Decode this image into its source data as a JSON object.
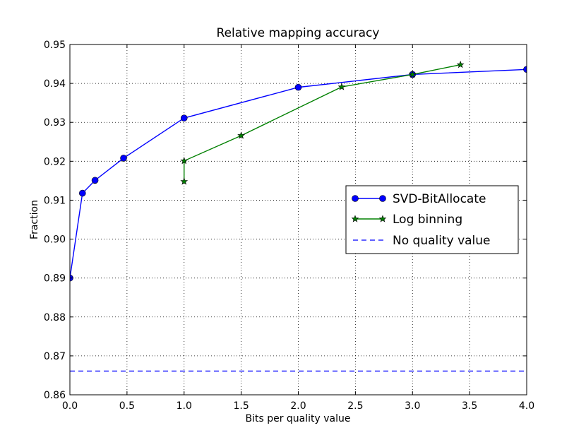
{
  "chart_data": {
    "type": "line",
    "title": "Relative mapping accuracy",
    "xlabel": "Bits per quality value",
    "ylabel": "Fraction",
    "xlim": [
      0.0,
      4.0
    ],
    "ylim": [
      0.86,
      0.95
    ],
    "xticks": [
      "0.0",
      "0.5",
      "1.0",
      "1.5",
      "2.0",
      "2.5",
      "3.0",
      "3.5",
      "4.0"
    ],
    "yticks": [
      "0.86",
      "0.87",
      "0.88",
      "0.89",
      "0.90",
      "0.91",
      "0.92",
      "0.93",
      "0.94",
      "0.95"
    ],
    "grid": true,
    "legend_position": "center-right",
    "series": [
      {
        "name": "SVD-BitAllocate",
        "color": "#0000ff",
        "marker": "circle",
        "x": [
          0.0,
          0.11,
          0.22,
          0.47,
          1.0,
          2.0,
          3.0,
          4.0
        ],
        "y": [
          0.89,
          0.9118,
          0.9151,
          0.9208,
          0.9311,
          0.939,
          0.9423,
          0.9436
        ]
      },
      {
        "name": "Log binning",
        "color": "#008000",
        "marker": "star",
        "x": [
          1.0,
          1.0,
          1.5,
          2.38,
          3.0,
          3.42
        ],
        "y": [
          0.9148,
          0.9201,
          0.9266,
          0.9391,
          0.9423,
          0.9448
        ]
      },
      {
        "name": "No quality value",
        "color": "#0000ff",
        "style": "dashed",
        "y": 0.8661
      }
    ]
  }
}
